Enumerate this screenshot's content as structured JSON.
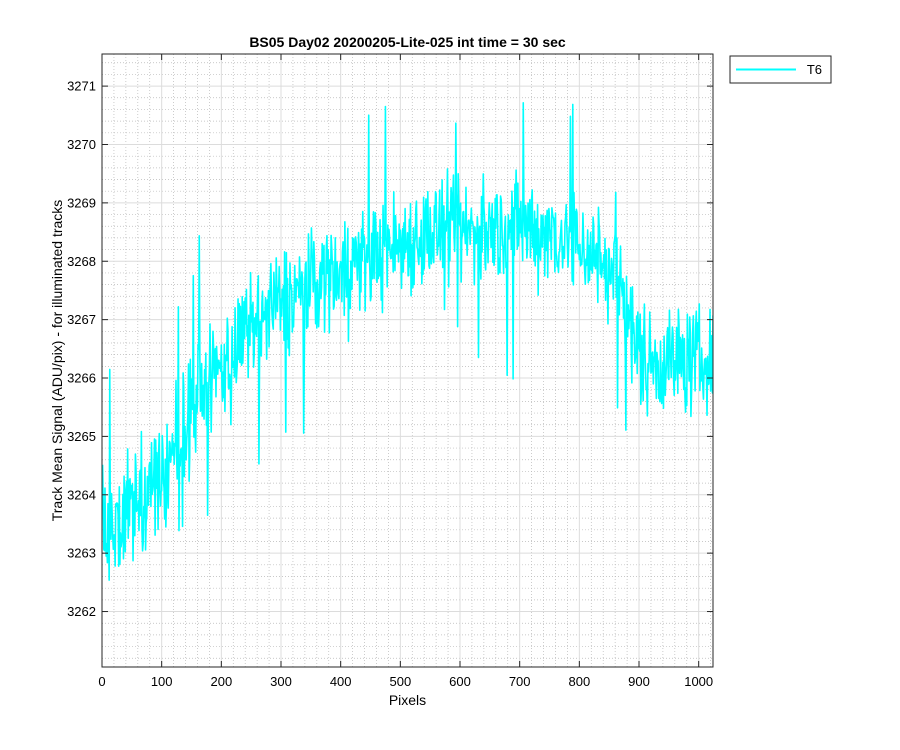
{
  "chart_data": {
    "type": "line",
    "title": "BS05 Day02 20200205-Lite-025 int time = 30 sec",
    "xlabel": "Pixels",
    "ylabel": "Track Mean Signal (ADU/pix) - for illuminated tracks",
    "xlim": [
      0,
      1024
    ],
    "ylim": [
      3261.05,
      3271.55
    ],
    "xticks": [
      0,
      100,
      200,
      300,
      400,
      500,
      600,
      700,
      800,
      900,
      1000
    ],
    "yticks": [
      3262,
      3263,
      3264,
      3265,
      3266,
      3267,
      3268,
      3269,
      3270,
      3271
    ],
    "grid": "on (major and minor)",
    "legend_position": "outside top-right",
    "series": [
      {
        "name": "T6",
        "color": "#00FFFF",
        "noise_amplitude": 0.9,
        "trend": {
          "x": [
            0,
            20,
            50,
            100,
            150,
            200,
            250,
            300,
            350,
            400,
            450,
            500,
            550,
            600,
            650,
            700,
            750,
            800,
            850,
            880,
            890,
            920,
            950,
            1000,
            1024
          ],
          "y": [
            3263.5,
            3263.3,
            3263.9,
            3264.3,
            3265.5,
            3266.2,
            3266.8,
            3267.3,
            3267.6,
            3267.9,
            3268.1,
            3268.3,
            3268.5,
            3268.5,
            3268.5,
            3268.6,
            3268.5,
            3268.3,
            3267.9,
            3267.4,
            3266.6,
            3266.3,
            3266.3,
            3266.3,
            3266.3
          ]
        }
      }
    ]
  }
}
